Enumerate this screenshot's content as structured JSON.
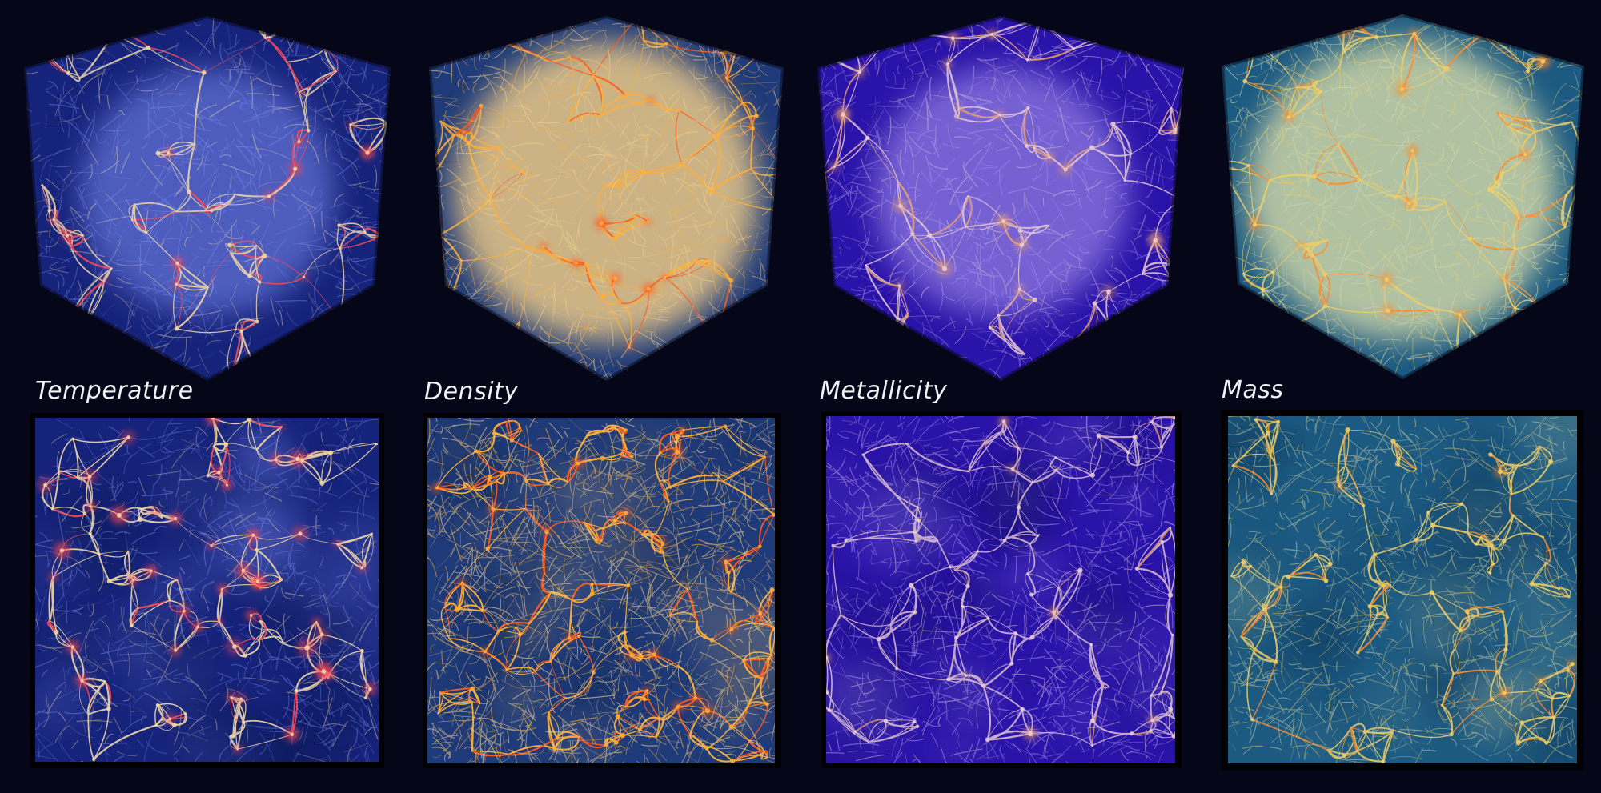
{
  "labels": {
    "temperature": "Temperature",
    "density": "Density",
    "metallicity": "Metallicity",
    "mass": "Mass"
  },
  "colors": {
    "background": "#050718",
    "temperature": {
      "base": "#16237a",
      "glow": "#7d8ef5",
      "filament": "#f2d9a8",
      "hot": "#ff4a55"
    },
    "density": {
      "base": "#1e3a78",
      "glow": "#f7d28a",
      "filament": "#ffb03a",
      "hot": "#ff5a1e"
    },
    "metallicity": {
      "base": "#2a13a8",
      "glow": "#b4a2f7",
      "filament": "#e9ccd2",
      "hot": "#f0a36a"
    },
    "mass": {
      "base": "#1c5a82",
      "glow": "#d7dcaa",
      "filament": "#f3cf63",
      "hot": "#ff8a2a"
    }
  }
}
